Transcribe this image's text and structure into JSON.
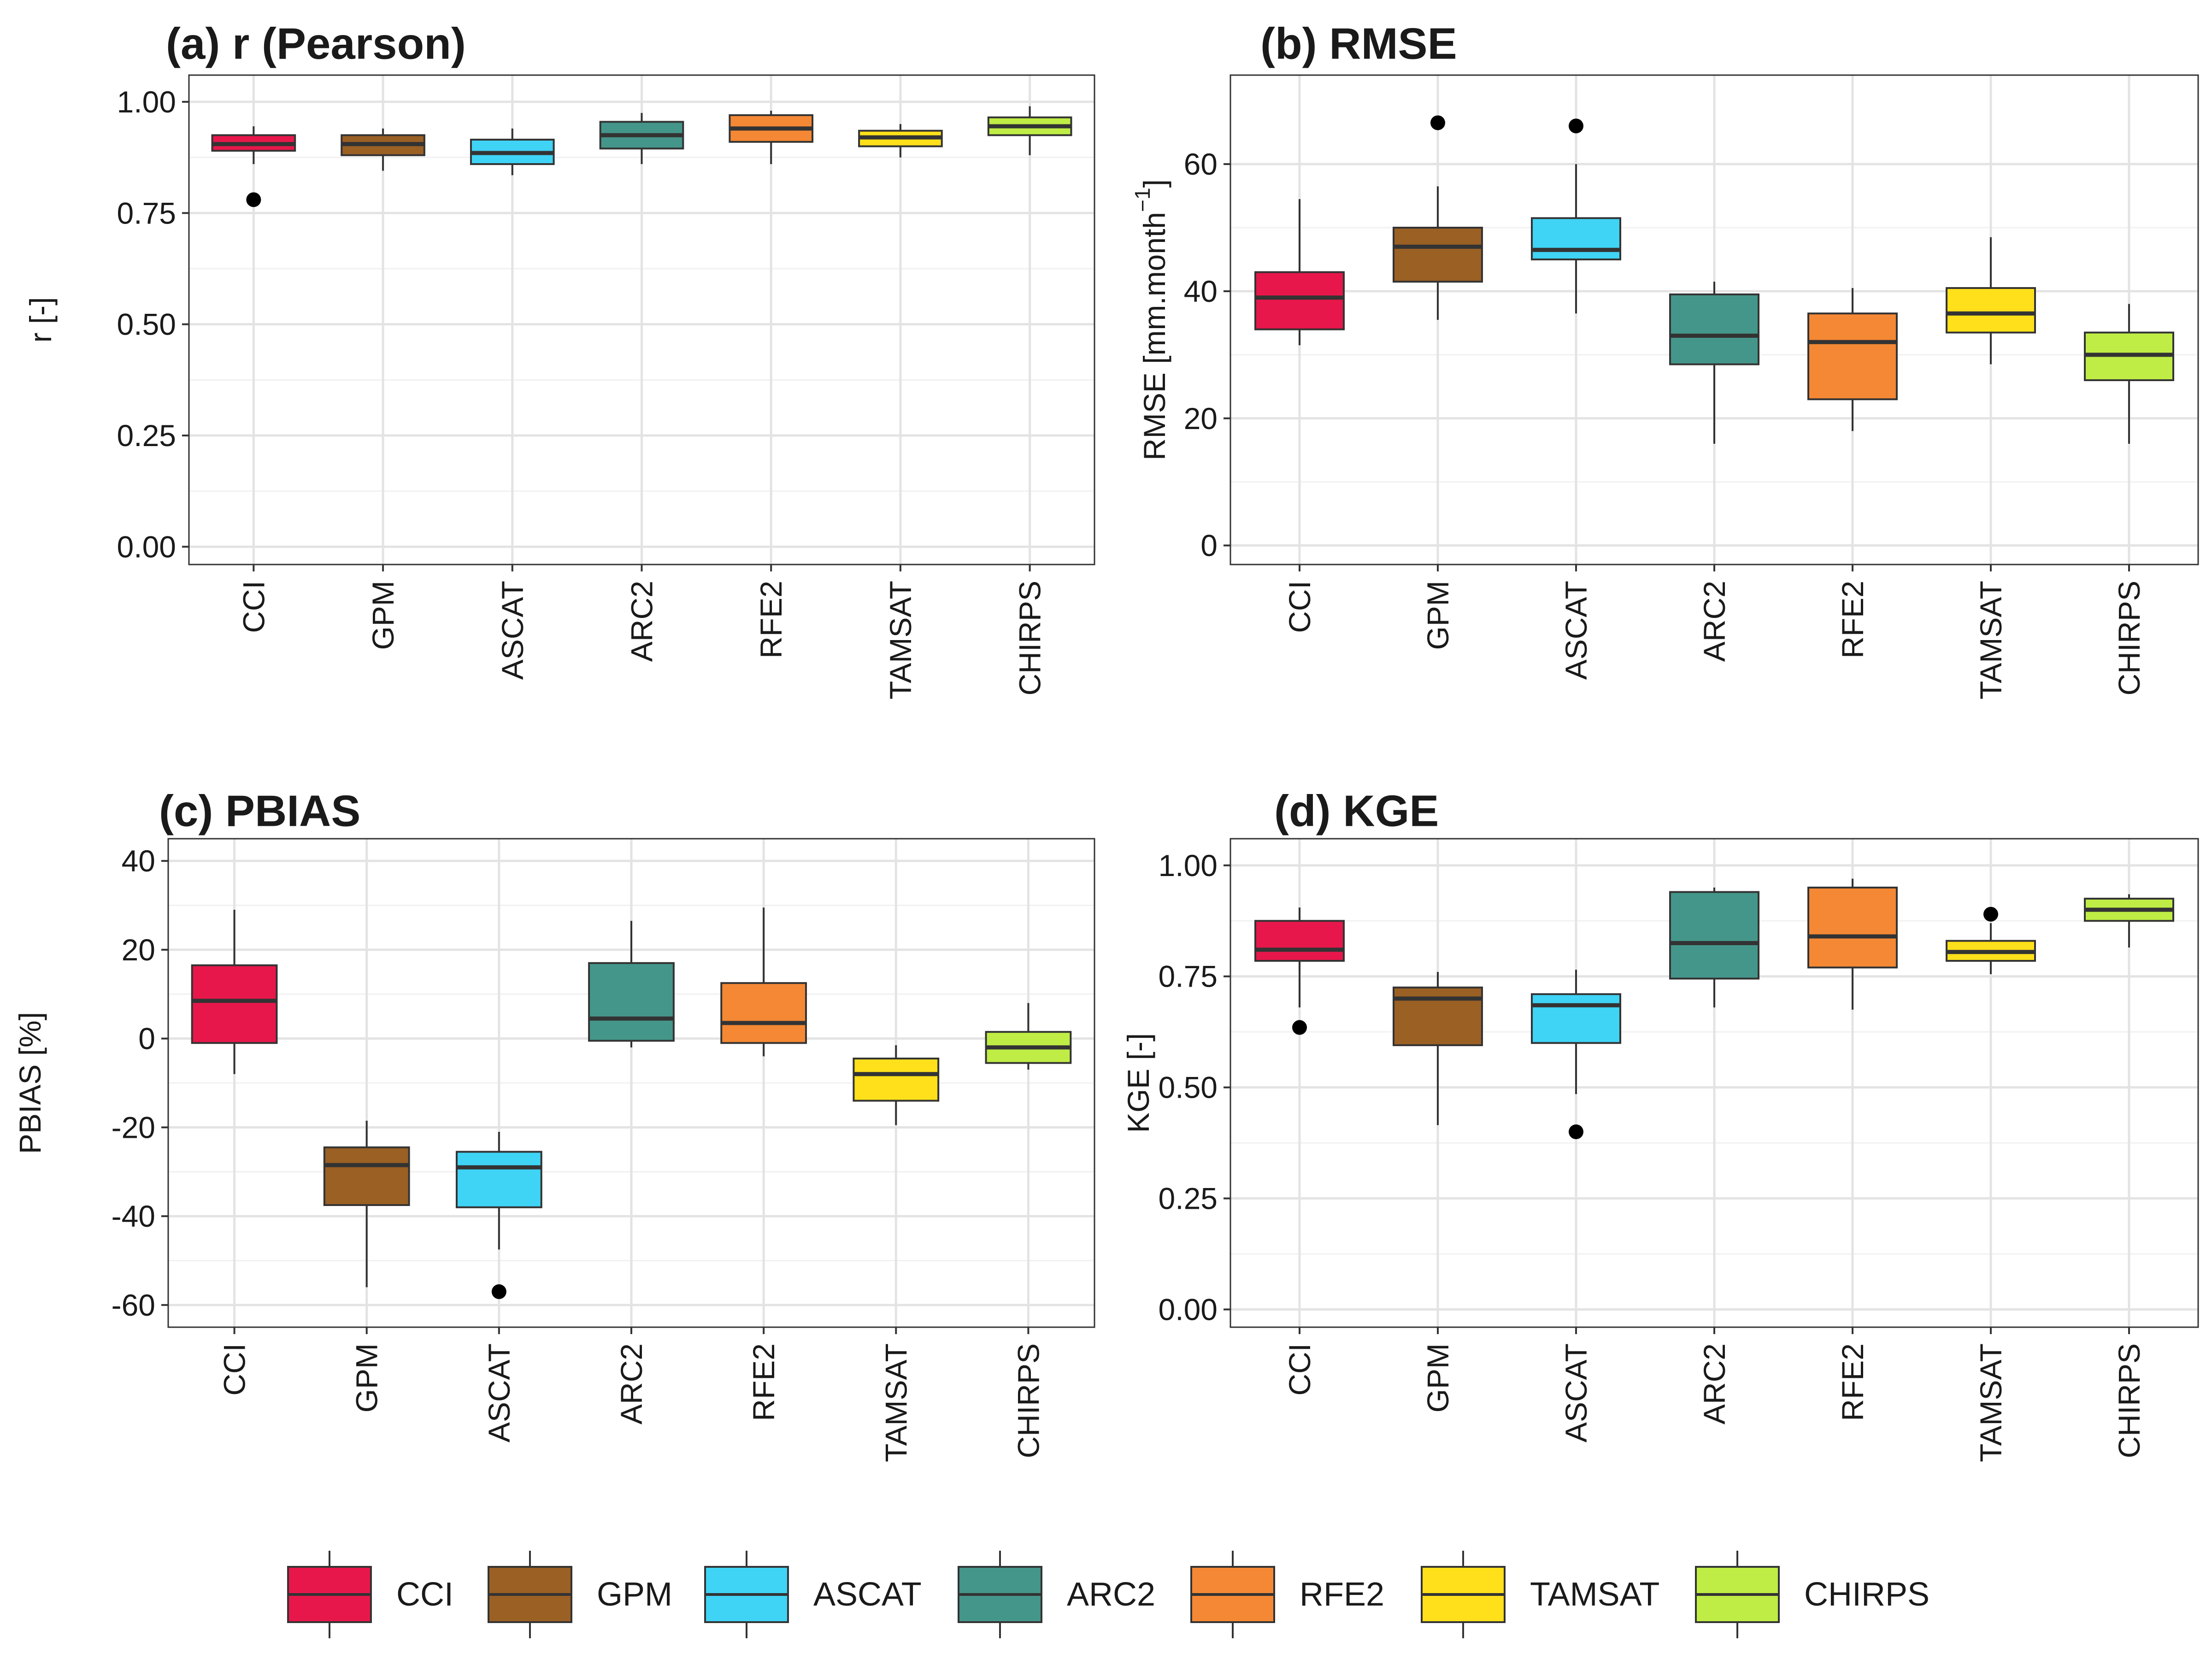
{
  "chart_data": [
    {
      "type": "boxplot",
      "title": "(a) r (Pearson)",
      "ylabel": "r [-]",
      "ylim": [
        -0.04,
        1.06
      ],
      "yticks": [
        0,
        0.25,
        0.5,
        0.75,
        1.0
      ],
      "ytick_labels": [
        "0.00",
        "0.25",
        "0.50",
        "0.75",
        "1.00"
      ],
      "grid": true,
      "categories": [
        "CCI",
        "GPM",
        "ASCAT",
        "ARC2",
        "RFE2",
        "TAMSAT",
        "CHIRPS"
      ],
      "boxes": [
        {
          "name": "CCI",
          "whisker_low": 0.86,
          "q1": 0.89,
          "median": 0.905,
          "q3": 0.925,
          "whisker_high": 0.945,
          "outliers": [
            0.78
          ]
        },
        {
          "name": "GPM",
          "whisker_low": 0.845,
          "q1": 0.88,
          "median": 0.905,
          "q3": 0.925,
          "whisker_high": 0.94,
          "outliers": []
        },
        {
          "name": "ASCAT",
          "whisker_low": 0.835,
          "q1": 0.86,
          "median": 0.885,
          "q3": 0.915,
          "whisker_high": 0.94,
          "outliers": []
        },
        {
          "name": "ARC2",
          "whisker_low": 0.86,
          "q1": 0.895,
          "median": 0.925,
          "q3": 0.955,
          "whisker_high": 0.975,
          "outliers": []
        },
        {
          "name": "RFE2",
          "whisker_low": 0.86,
          "q1": 0.91,
          "median": 0.94,
          "q3": 0.97,
          "whisker_high": 0.98,
          "outliers": []
        },
        {
          "name": "TAMSAT",
          "whisker_low": 0.875,
          "q1": 0.9,
          "median": 0.92,
          "q3": 0.935,
          "whisker_high": 0.95,
          "outliers": []
        },
        {
          "name": "CHIRPS",
          "whisker_low": 0.88,
          "q1": 0.925,
          "median": 0.945,
          "q3": 0.965,
          "whisker_high": 0.99,
          "outliers": []
        }
      ]
    },
    {
      "type": "boxplot",
      "title": "(b) RMSE",
      "ylabel": "RMSE [mm.month",
      "ylabel_sup": "−1",
      "ylabel_end": "]",
      "ylim": [
        -3,
        74
      ],
      "yticks": [
        0,
        20,
        40,
        60
      ],
      "ytick_labels": [
        "0",
        "20",
        "40",
        "60"
      ],
      "grid": true,
      "categories": [
        "CCI",
        "GPM",
        "ASCAT",
        "ARC2",
        "RFE2",
        "TAMSAT",
        "CHIRPS"
      ],
      "boxes": [
        {
          "name": "CCI",
          "whisker_low": 31.5,
          "q1": 34,
          "median": 39,
          "q3": 43,
          "whisker_high": 54.5,
          "outliers": []
        },
        {
          "name": "GPM",
          "whisker_low": 35.5,
          "q1": 41.5,
          "median": 47,
          "q3": 50,
          "whisker_high": 56.5,
          "outliers": [
            66.5
          ]
        },
        {
          "name": "ASCAT",
          "whisker_low": 36.5,
          "q1": 45,
          "median": 46.5,
          "q3": 51.5,
          "whisker_high": 60,
          "outliers": [
            66
          ]
        },
        {
          "name": "ARC2",
          "whisker_low": 16,
          "q1": 28.5,
          "median": 33,
          "q3": 39.5,
          "whisker_high": 41.5,
          "outliers": []
        },
        {
          "name": "RFE2",
          "whisker_low": 18,
          "q1": 23,
          "median": 32,
          "q3": 36.5,
          "whisker_high": 40.5,
          "outliers": []
        },
        {
          "name": "TAMSAT",
          "whisker_low": 28.5,
          "q1": 33.5,
          "median": 36.5,
          "q3": 40.5,
          "whisker_high": 48.5,
          "outliers": []
        },
        {
          "name": "CHIRPS",
          "whisker_low": 16,
          "q1": 26,
          "median": 30,
          "q3": 33.5,
          "whisker_high": 38,
          "outliers": []
        }
      ]
    },
    {
      "type": "boxplot",
      "title": "(c) PBIAS",
      "ylabel": "PBIAS [%]",
      "ylim": [
        -65,
        45
      ],
      "yticks": [
        -60,
        -40,
        -20,
        0,
        20,
        40
      ],
      "ytick_labels": [
        "-60",
        "-40",
        "-20",
        "0",
        "20",
        "40"
      ],
      "grid": true,
      "categories": [
        "CCI",
        "GPM",
        "ASCAT",
        "ARC2",
        "RFE2",
        "TAMSAT",
        "CHIRPS"
      ],
      "boxes": [
        {
          "name": "CCI",
          "whisker_low": -8,
          "q1": -1,
          "median": 8.5,
          "q3": 16.5,
          "whisker_high": 29,
          "outliers": []
        },
        {
          "name": "GPM",
          "whisker_low": -56,
          "q1": -37.5,
          "median": -28.5,
          "q3": -24.5,
          "whisker_high": -18.5,
          "outliers": []
        },
        {
          "name": "ASCAT",
          "whisker_low": -47.5,
          "q1": -38,
          "median": -29,
          "q3": -25.5,
          "whisker_high": -21,
          "outliers": [
            -57
          ]
        },
        {
          "name": "ARC2",
          "whisker_low": -2,
          "q1": -0.5,
          "median": 4.5,
          "q3": 17,
          "whisker_high": 26.5,
          "outliers": []
        },
        {
          "name": "RFE2",
          "whisker_low": -4,
          "q1": -1,
          "median": 3.5,
          "q3": 12.5,
          "whisker_high": 29.5,
          "outliers": []
        },
        {
          "name": "TAMSAT",
          "whisker_low": -19.5,
          "q1": -14,
          "median": -8,
          "q3": -4.5,
          "whisker_high": -1.5,
          "outliers": []
        },
        {
          "name": "CHIRPS",
          "whisker_low": -7,
          "q1": -5.5,
          "median": -2,
          "q3": 1.5,
          "whisker_high": 8,
          "outliers": []
        }
      ]
    },
    {
      "type": "boxplot",
      "title": "(d) KGE",
      "ylabel": "KGE [-]",
      "ylim": [
        -0.04,
        1.06
      ],
      "yticks": [
        0,
        0.25,
        0.5,
        0.75,
        1.0
      ],
      "ytick_labels": [
        "0.00",
        "0.25",
        "0.50",
        "0.75",
        "1.00"
      ],
      "grid": true,
      "categories": [
        "CCI",
        "GPM",
        "ASCAT",
        "ARC2",
        "RFE2",
        "TAMSAT",
        "CHIRPS"
      ],
      "boxes": [
        {
          "name": "CCI",
          "whisker_low": 0.68,
          "q1": 0.785,
          "median": 0.81,
          "q3": 0.875,
          "whisker_high": 0.905,
          "outliers": [
            0.635
          ]
        },
        {
          "name": "GPM",
          "whisker_low": 0.415,
          "q1": 0.595,
          "median": 0.7,
          "q3": 0.725,
          "whisker_high": 0.76,
          "outliers": []
        },
        {
          "name": "ASCAT",
          "whisker_low": 0.485,
          "q1": 0.6,
          "median": 0.685,
          "q3": 0.71,
          "whisker_high": 0.765,
          "outliers": [
            0.4
          ]
        },
        {
          "name": "ARC2",
          "whisker_low": 0.68,
          "q1": 0.745,
          "median": 0.825,
          "q3": 0.94,
          "whisker_high": 0.95,
          "outliers": []
        },
        {
          "name": "RFE2",
          "whisker_low": 0.675,
          "q1": 0.77,
          "median": 0.84,
          "q3": 0.95,
          "whisker_high": 0.97,
          "outliers": []
        },
        {
          "name": "TAMSAT",
          "whisker_low": 0.755,
          "q1": 0.785,
          "median": 0.805,
          "q3": 0.83,
          "whisker_high": 0.87,
          "outliers": [
            0.89
          ]
        },
        {
          "name": "CHIRPS",
          "whisker_low": 0.815,
          "q1": 0.875,
          "median": 0.9,
          "q3": 0.925,
          "whisker_high": 0.935,
          "outliers": []
        }
      ]
    }
  ],
  "legend": {
    "placement": "bottom",
    "items": [
      {
        "label": "CCI",
        "color": "#E8174B"
      },
      {
        "label": "GPM",
        "color": "#9A6024"
      },
      {
        "label": "ASCAT",
        "color": "#3FD3F5"
      },
      {
        "label": "ARC2",
        "color": "#44968A"
      },
      {
        "label": "RFE2",
        "color": "#F58834"
      },
      {
        "label": "TAMSAT",
        "color": "#FFE01A"
      },
      {
        "label": "CHIRPS",
        "color": "#BFED45"
      }
    ]
  }
}
